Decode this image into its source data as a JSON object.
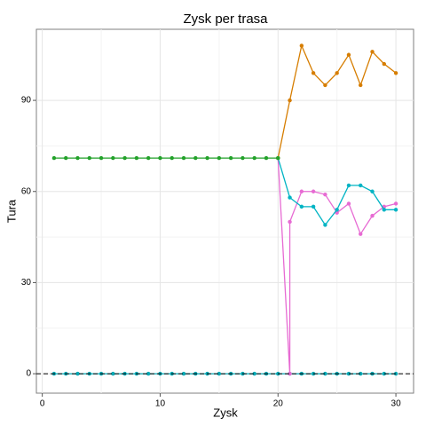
{
  "chart_data": {
    "type": "line",
    "title": "Zysk per trasa",
    "x_label": "Zysk",
    "y_label": "Tura",
    "xlim": [
      -0.5,
      31.5
    ],
    "ylim": [
      -6.4,
      113.4
    ],
    "xticks": [
      0,
      10,
      20,
      30
    ],
    "yticks": [
      0,
      30,
      60,
      90
    ],
    "grid": true,
    "hline": 0,
    "series": [
      {
        "color": "#00a9b5",
        "x": [
          1,
          2,
          3,
          4,
          5,
          6,
          7,
          8,
          9,
          10,
          11,
          12,
          13,
          14,
          15,
          16,
          17,
          18,
          19,
          20,
          21,
          22,
          23,
          24,
          25,
          26,
          27,
          28,
          29,
          30
        ],
        "values": [
          0,
          0,
          0,
          0,
          0,
          0,
          0,
          0,
          0,
          0,
          0,
          0,
          0,
          0,
          0,
          0,
          0,
          0,
          0,
          0,
          0,
          0,
          0,
          0,
          0,
          0,
          0,
          0,
          0,
          0
        ]
      },
      {
        "color": "#e76bd3",
        "x": [
          20,
          21,
          21,
          22,
          23,
          24,
          25,
          26,
          27,
          28,
          29,
          30
        ],
        "values": [
          71,
          0,
          50,
          60,
          60,
          59,
          53,
          56,
          46,
          52,
          55,
          56
        ]
      },
      {
        "color": "#00b4c4",
        "x": [
          20,
          21,
          22,
          23,
          24,
          25,
          26,
          27,
          28,
          29,
          30
        ],
        "values": [
          71,
          58,
          55,
          55,
          49,
          54,
          62,
          62,
          60,
          54,
          54
        ]
      },
      {
        "color": "#d67d00",
        "x": [
          20,
          21,
          22,
          23,
          24,
          25,
          26,
          27,
          28,
          29,
          30
        ],
        "values": [
          71,
          90,
          108,
          99,
          95,
          99,
          105,
          95,
          106,
          102,
          99
        ]
      },
      {
        "color": "#22a12a",
        "x": [
          1,
          2,
          3,
          4,
          5,
          6,
          7,
          8,
          9,
          10,
          11,
          12,
          13,
          14,
          15,
          16,
          17,
          18,
          19,
          20
        ],
        "values": [
          71,
          71,
          71,
          71,
          71,
          71,
          71,
          71,
          71,
          71,
          71,
          71,
          71,
          71,
          71,
          71,
          71,
          71,
          71,
          71
        ]
      }
    ]
  }
}
